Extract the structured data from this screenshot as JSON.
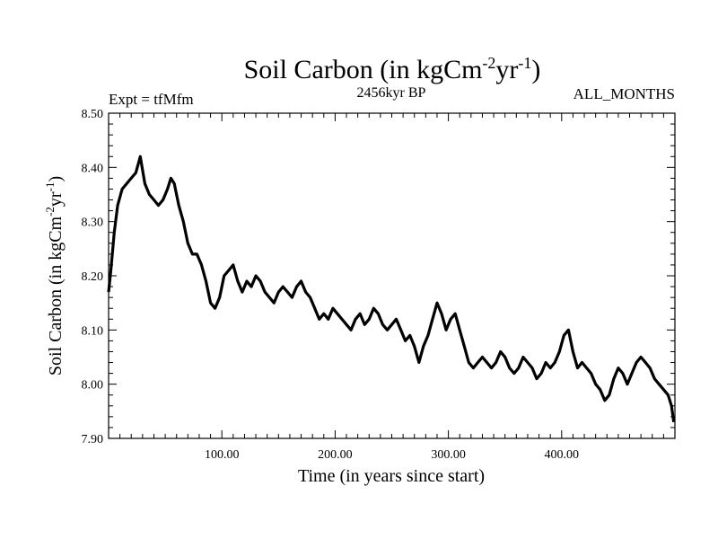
{
  "chart_data": {
    "type": "line",
    "title": "Soil Carbon (in kgCm",
    "title_sup1": "-2",
    "title_mid": "yr",
    "title_sup2": "-1",
    "title_end": ")",
    "subtitle_left": "Expt = tfMfm",
    "subtitle_center": "2456kyr BP",
    "subtitle_right": "ALL_MONTHS",
    "xlabel": "Time (in years since start)",
    "ylabel": "Soil Carbon (in kgCm",
    "ylabel_sup1": "-2",
    "ylabel_mid": "yr",
    "ylabel_sup2": "-1",
    "ylabel_end": ")",
    "xlim": [
      0,
      500
    ],
    "ylim": [
      7.9,
      8.5
    ],
    "xticks": [
      {
        "value": 100,
        "label": "100.00"
      },
      {
        "value": 200,
        "label": "200.00"
      },
      {
        "value": 300,
        "label": "300.00"
      },
      {
        "value": 400,
        "label": "400.00"
      }
    ],
    "yticks": [
      {
        "value": 7.9,
        "label": "7.90"
      },
      {
        "value": 8.0,
        "label": "8.00"
      },
      {
        "value": 8.1,
        "label": "8.10"
      },
      {
        "value": 8.2,
        "label": "8.20"
      },
      {
        "value": 8.3,
        "label": "8.30"
      },
      {
        "value": 8.4,
        "label": "8.40"
      },
      {
        "value": 8.5,
        "label": "8.50"
      }
    ],
    "series": [
      {
        "name": "Soil Carbon",
        "color": "#000000",
        "x": [
          0,
          2,
          5,
          8,
          12,
          16,
          20,
          24,
          28,
          32,
          36,
          40,
          44,
          48,
          52,
          55,
          58,
          62,
          66,
          70,
          74,
          78,
          82,
          86,
          90,
          94,
          98,
          102,
          106,
          110,
          114,
          118,
          122,
          126,
          130,
          134,
          138,
          142,
          146,
          150,
          154,
          158,
          162,
          166,
          170,
          174,
          178,
          182,
          186,
          190,
          194,
          198,
          202,
          206,
          210,
          214,
          218,
          222,
          226,
          230,
          234,
          238,
          242,
          246,
          250,
          254,
          258,
          262,
          266,
          270,
          274,
          278,
          282,
          286,
          290,
          294,
          298,
          302,
          306,
          310,
          314,
          318,
          322,
          326,
          330,
          334,
          338,
          342,
          346,
          350,
          354,
          358,
          362,
          366,
          370,
          374,
          378,
          382,
          386,
          390,
          394,
          398,
          402,
          406,
          410,
          414,
          418,
          422,
          426,
          430,
          434,
          438,
          442,
          446,
          450,
          454,
          458,
          462,
          466,
          470,
          474,
          478,
          482,
          486,
          490,
          494,
          497,
          499
        ],
        "y": [
          8.17,
          8.21,
          8.28,
          8.33,
          8.36,
          8.37,
          8.38,
          8.39,
          8.42,
          8.37,
          8.35,
          8.34,
          8.33,
          8.34,
          8.36,
          8.38,
          8.37,
          8.33,
          8.3,
          8.26,
          8.24,
          8.24,
          8.22,
          8.19,
          8.15,
          8.14,
          8.16,
          8.2,
          8.21,
          8.22,
          8.19,
          8.17,
          8.19,
          8.18,
          8.2,
          8.19,
          8.17,
          8.16,
          8.15,
          8.17,
          8.18,
          8.17,
          8.16,
          8.18,
          8.19,
          8.17,
          8.16,
          8.14,
          8.12,
          8.13,
          8.12,
          8.14,
          8.13,
          8.12,
          8.11,
          8.1,
          8.12,
          8.13,
          8.11,
          8.12,
          8.14,
          8.13,
          8.11,
          8.1,
          8.11,
          8.12,
          8.1,
          8.08,
          8.09,
          8.07,
          8.04,
          8.07,
          8.09,
          8.12,
          8.15,
          8.13,
          8.1,
          8.12,
          8.13,
          8.1,
          8.07,
          8.04,
          8.03,
          8.04,
          8.05,
          8.04,
          8.03,
          8.04,
          8.06,
          8.05,
          8.03,
          8.02,
          8.03,
          8.05,
          8.04,
          8.03,
          8.01,
          8.02,
          8.04,
          8.03,
          8.04,
          8.06,
          8.09,
          8.1,
          8.06,
          8.03,
          8.04,
          8.03,
          8.02,
          8.0,
          7.99,
          7.97,
          7.98,
          8.01,
          8.03,
          8.02,
          8.0,
          8.02,
          8.04,
          8.05,
          8.04,
          8.03,
          8.01,
          8.0,
          7.99,
          7.98,
          7.96,
          7.93
        ]
      }
    ]
  }
}
